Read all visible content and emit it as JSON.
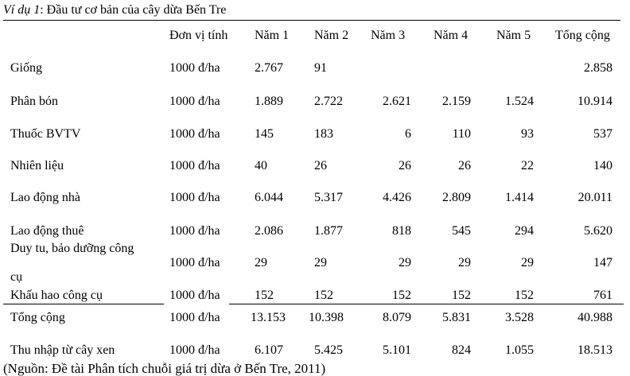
{
  "title": {
    "prefix": "Ví dụ 1",
    "text": ": Đầu tư cơ bản của cây dừa Bến Tre"
  },
  "headers": [
    "",
    "Đơn vị tính",
    "Năm 1",
    "Năm 2",
    "Năm 3",
    "Năm 4",
    "Năm 5",
    "Tổng cộng"
  ],
  "rows": [
    {
      "label": "Giống",
      "unit": "1000 đ/ha",
      "y1": "2.767",
      "y2": "91",
      "y3": "",
      "y4": "",
      "y5": "",
      "total": "2.858"
    },
    {
      "label": "Phân bón",
      "unit": "1000 đ/ha",
      "y1": "1.889",
      "y2": "2.722",
      "y3": "2.621",
      "y4": "2.159",
      "y5": "1.524",
      "total": "10.914"
    },
    {
      "label": "Thuốc BVTV",
      "unit": "1000 đ/ha",
      "y1": "145",
      "y2": "183",
      "y3": "6",
      "y4": "110",
      "y5": "93",
      "total": "537"
    },
    {
      "label": "Nhiên liệu",
      "unit": "1000 đ/ha",
      "y1": "40",
      "y2": "26",
      "y3": "26",
      "y4": "26",
      "y5": "22",
      "total": "140"
    },
    {
      "label": "Lao động nhà",
      "unit": "1000 đ/ha",
      "y1": "6.044",
      "y2": "5.317",
      "y3": "4.426",
      "y4": "2.809",
      "y5": "1.414",
      "total": "20.011"
    },
    {
      "label": "Lao động thuê",
      "unit": "1000 đ/ha",
      "y1": "2.086",
      "y2": "1.877",
      "y3": "818",
      "y4": "545",
      "y5": "294",
      "total": "5.620"
    },
    {
      "label": "Duy tu, bảo dưỡng công",
      "label2": "cụ",
      "unit": "1000 đ/ha",
      "y1": "29",
      "y2": "29",
      "y3": "29",
      "y4": "29",
      "y5": "29",
      "total": "147"
    },
    {
      "label": "Khấu hao công cụ",
      "unit": "1000 đ/ha",
      "y1": "152",
      "y2": "152",
      "y3": "152",
      "y4": "152",
      "y5": "152",
      "total": "761"
    },
    {
      "label": "Tổng cộng",
      "unit": "1000 đ/ha",
      "y1": "13.153",
      "y2": "10.398",
      "y3": "8.079",
      "y4": "5.831",
      "y5": "3.528",
      "total": "40.988"
    },
    {
      "label": "Thu nhập từ cây xen",
      "unit": "1000 đ/ha",
      "y1": "6.107",
      "y2": "5.425",
      "y3": "5.101",
      "y4": "824",
      "y5": "1.055",
      "total": "18.513"
    }
  ],
  "source": "(Nguồn: Đề tài Phân tích chuỗi giá trị dừa ở Bến Tre, 2011)"
}
